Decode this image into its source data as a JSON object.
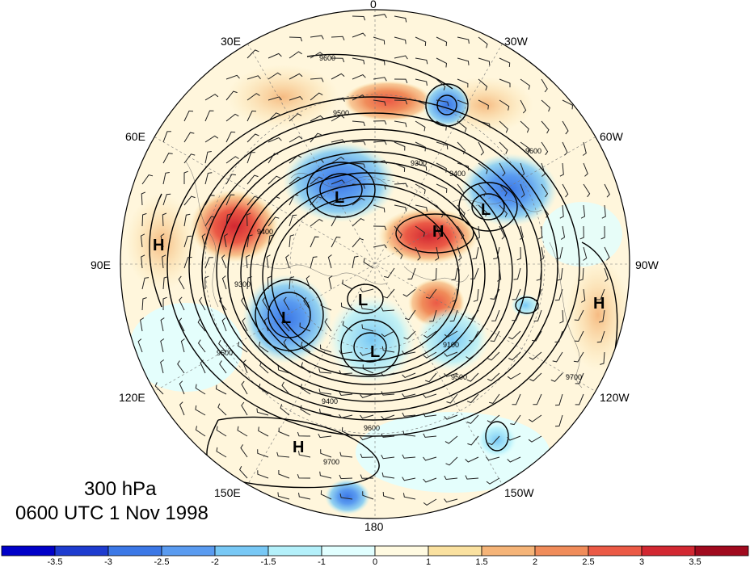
{
  "title": {
    "level": "300 hPa",
    "valid_time": "0600 UTC 1 Nov 1998"
  },
  "longitude_labels": {
    "lon_0": "0",
    "lon_30w": "30W",
    "lon_60w": "60W",
    "lon_90w": "90W",
    "lon_120w": "120W",
    "lon_150w": "150W",
    "lon_180": "180",
    "lon_150e": "150E",
    "lon_120e": "120E",
    "lon_90e": "90E",
    "lon_60e": "60E",
    "lon_30e": "30E"
  },
  "pressure_centers": [
    {
      "kind": "H",
      "region": "Central Asia"
    },
    {
      "kind": "H",
      "region": "Arctic near Greenland"
    },
    {
      "kind": "H",
      "region": "North Pacific"
    },
    {
      "kind": "H",
      "region": "Eastern North America"
    },
    {
      "kind": "L",
      "region": "Northern Scandinavia"
    },
    {
      "kind": "L",
      "region": "Baffin Bay"
    },
    {
      "kind": "L",
      "region": "Siberia"
    },
    {
      "kind": "L",
      "region": "Arctic Ocean"
    },
    {
      "kind": "L",
      "region": "Eastern Siberia"
    }
  ],
  "contour_labels": {
    "c9100": "9100",
    "c9300": "9300",
    "c9400": "9400",
    "c9500": "9500",
    "c9600": "9600",
    "c9700": "9700"
  },
  "colorbar": {
    "colors": [
      "#0000c8",
      "#1e3ccf",
      "#3c78e6",
      "#5a9bf0",
      "#78c8f5",
      "#b4f0fa",
      "#e1ffff",
      "#fffae1",
      "#fae1a0",
      "#f5b478",
      "#f08c5a",
      "#eb5a46",
      "#d22832",
      "#a00a1e"
    ],
    "ticks": [
      "-3.5",
      "-3",
      "-2.5",
      "-2",
      "-1.5",
      "-1",
      "0",
      "1",
      "1.5",
      "2",
      "2.5",
      "3",
      "3.5"
    ]
  }
}
